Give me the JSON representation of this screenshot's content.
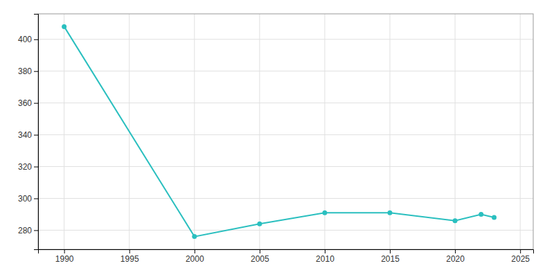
{
  "chart_data": {
    "type": "line",
    "x": [
      1990,
      2000,
      2005,
      2010,
      2015,
      2020,
      2022,
      2023
    ],
    "values": [
      408,
      276,
      284,
      291,
      291,
      286,
      290,
      288
    ],
    "color": "#2ABFBF",
    "marker": "circle",
    "xlim": [
      1988,
      2026
    ],
    "ylim": [
      268,
      416
    ],
    "xticks": [
      1990,
      1995,
      2000,
      2005,
      2010,
      2015,
      2020,
      2025
    ],
    "yticks": [
      280,
      300,
      320,
      340,
      360,
      380,
      400
    ],
    "grid": true
  }
}
